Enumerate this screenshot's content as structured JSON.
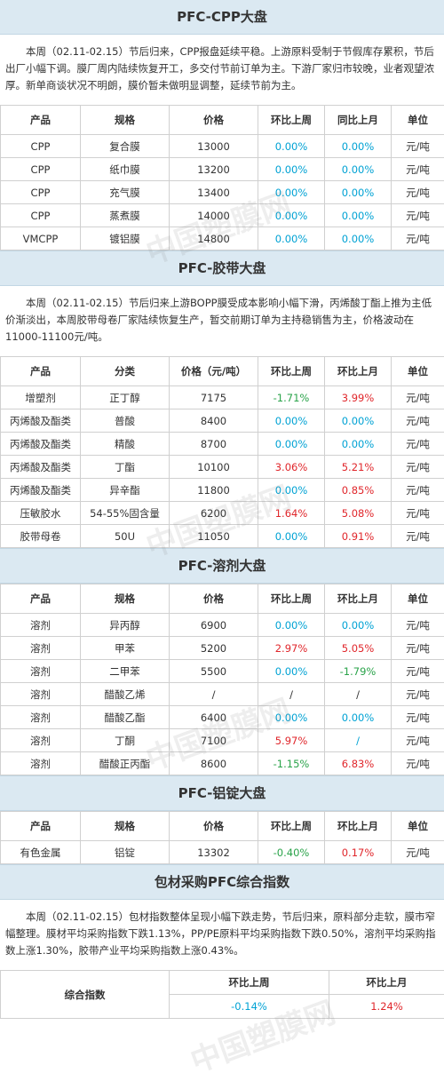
{
  "watermark": "中国塑膜网",
  "cpp": {
    "title": "PFC-CPP大盘",
    "desc": "本周（02.11-02.15）节后归来，CPP报盘延续平稳。上游原料受制于节假库存累积，节后出厂小幅下调。膜厂周内陆续恢复开工，多交付节前订单为主。下游厂家归市较晚，业者观望浓厚。新单商谈状况不明朗，膜价暂未做明显调整，延续节前为主。",
    "headers": [
      "产品",
      "规格",
      "价格",
      "环比上周",
      "同比上月",
      "单位"
    ],
    "rows": [
      [
        "CPP",
        "复合膜",
        "13000",
        "0.00%",
        "0.00%",
        "元/吨"
      ],
      [
        "CPP",
        "纸巾膜",
        "13200",
        "0.00%",
        "0.00%",
        "元/吨"
      ],
      [
        "CPP",
        "充气膜",
        "13400",
        "0.00%",
        "0.00%",
        "元/吨"
      ],
      [
        "CPP",
        "蒸煮膜",
        "14000",
        "0.00%",
        "0.00%",
        "元/吨"
      ],
      [
        "VMCPP",
        "镀铝膜",
        "14800",
        "0.00%",
        "0.00%",
        "元/吨"
      ]
    ]
  },
  "tape": {
    "title": "PFC-胶带大盘",
    "desc": "本周（02.11-02.15）节后归来上游BOPP膜受成本影响小幅下滑，丙烯酸丁酯上推为主低价渐淡出，本周胶带母卷厂家陆续恢复生产，暂交前期订单为主持稳销售为主，价格波动在11000-11100元/吨。",
    "headers": [
      "产品",
      "分类",
      "价格（元/吨）",
      "环比上周",
      "环比上月",
      "单位"
    ],
    "rows": [
      [
        "增塑剂",
        "正丁醇",
        "7175",
        "-1.71%",
        "3.99%",
        "元/吨"
      ],
      [
        "丙烯酸及酯类",
        "普酸",
        "8400",
        "0.00%",
        "0.00%",
        "元/吨"
      ],
      [
        "丙烯酸及酯类",
        "精酸",
        "8700",
        "0.00%",
        "0.00%",
        "元/吨"
      ],
      [
        "丙烯酸及酯类",
        "丁酯",
        "10100",
        "3.06%",
        "5.21%",
        "元/吨"
      ],
      [
        "丙烯酸及酯类",
        "异辛酯",
        "11800",
        "0.00%",
        "0.85%",
        "元/吨"
      ],
      [
        "压敏胶水",
        "54-55%固含量",
        "6200",
        "1.64%",
        "5.08%",
        "元/吨"
      ],
      [
        "胶带母卷",
        "50U",
        "11050",
        "0.00%",
        "0.91%",
        "元/吨"
      ]
    ]
  },
  "solvent": {
    "title": "PFC-溶剂大盘",
    "headers": [
      "产品",
      "规格",
      "价格",
      "环比上周",
      "环比上月",
      "单位"
    ],
    "rows": [
      [
        "溶剂",
        "异丙醇",
        "6900",
        "0.00%",
        "0.00%",
        "元/吨"
      ],
      [
        "溶剂",
        "甲苯",
        "5200",
        "2.97%",
        "5.05%",
        "元/吨"
      ],
      [
        "溶剂",
        "二甲苯",
        "5500",
        "0.00%",
        "-1.79%",
        "元/吨"
      ],
      [
        "溶剂",
        "醋酸乙烯",
        "/",
        "/",
        "/",
        "元/吨"
      ],
      [
        "溶剂",
        "醋酸乙酯",
        "6400",
        "0.00%",
        "0.00%",
        "元/吨"
      ],
      [
        "溶剂",
        "丁酮",
        "7100",
        "5.97%",
        "/",
        "元/吨"
      ],
      [
        "溶剂",
        "醋酸正丙酯",
        "8600",
        "-1.15%",
        "6.83%",
        "元/吨"
      ]
    ]
  },
  "aluminum": {
    "title": "PFC-铝锭大盘",
    "headers": [
      "产品",
      "规格",
      "价格",
      "环比上周",
      "环比上月",
      "单位"
    ],
    "rows": [
      [
        "有色金属",
        "铝锭",
        "13302",
        "-0.40%",
        "0.17%",
        "元/吨"
      ]
    ]
  },
  "index": {
    "title": "包材采购PFC综合指数",
    "desc": "本周（02.11-02.15）包材指数整体呈现小幅下跌走势，节后归来，原料部分走软，膜市窄幅整理。膜材平均采购指数下跌1.13%，PP/PE原料平均采购指数下跌0.50%，溶剂平均采购指数上涨1.30%，胶带产业平均采购指数上涨0.43%。",
    "label": "综合指数",
    "h1": "环比上周",
    "h2": "环比上月",
    "v1": "-0.14%",
    "v2": "1.24%"
  }
}
